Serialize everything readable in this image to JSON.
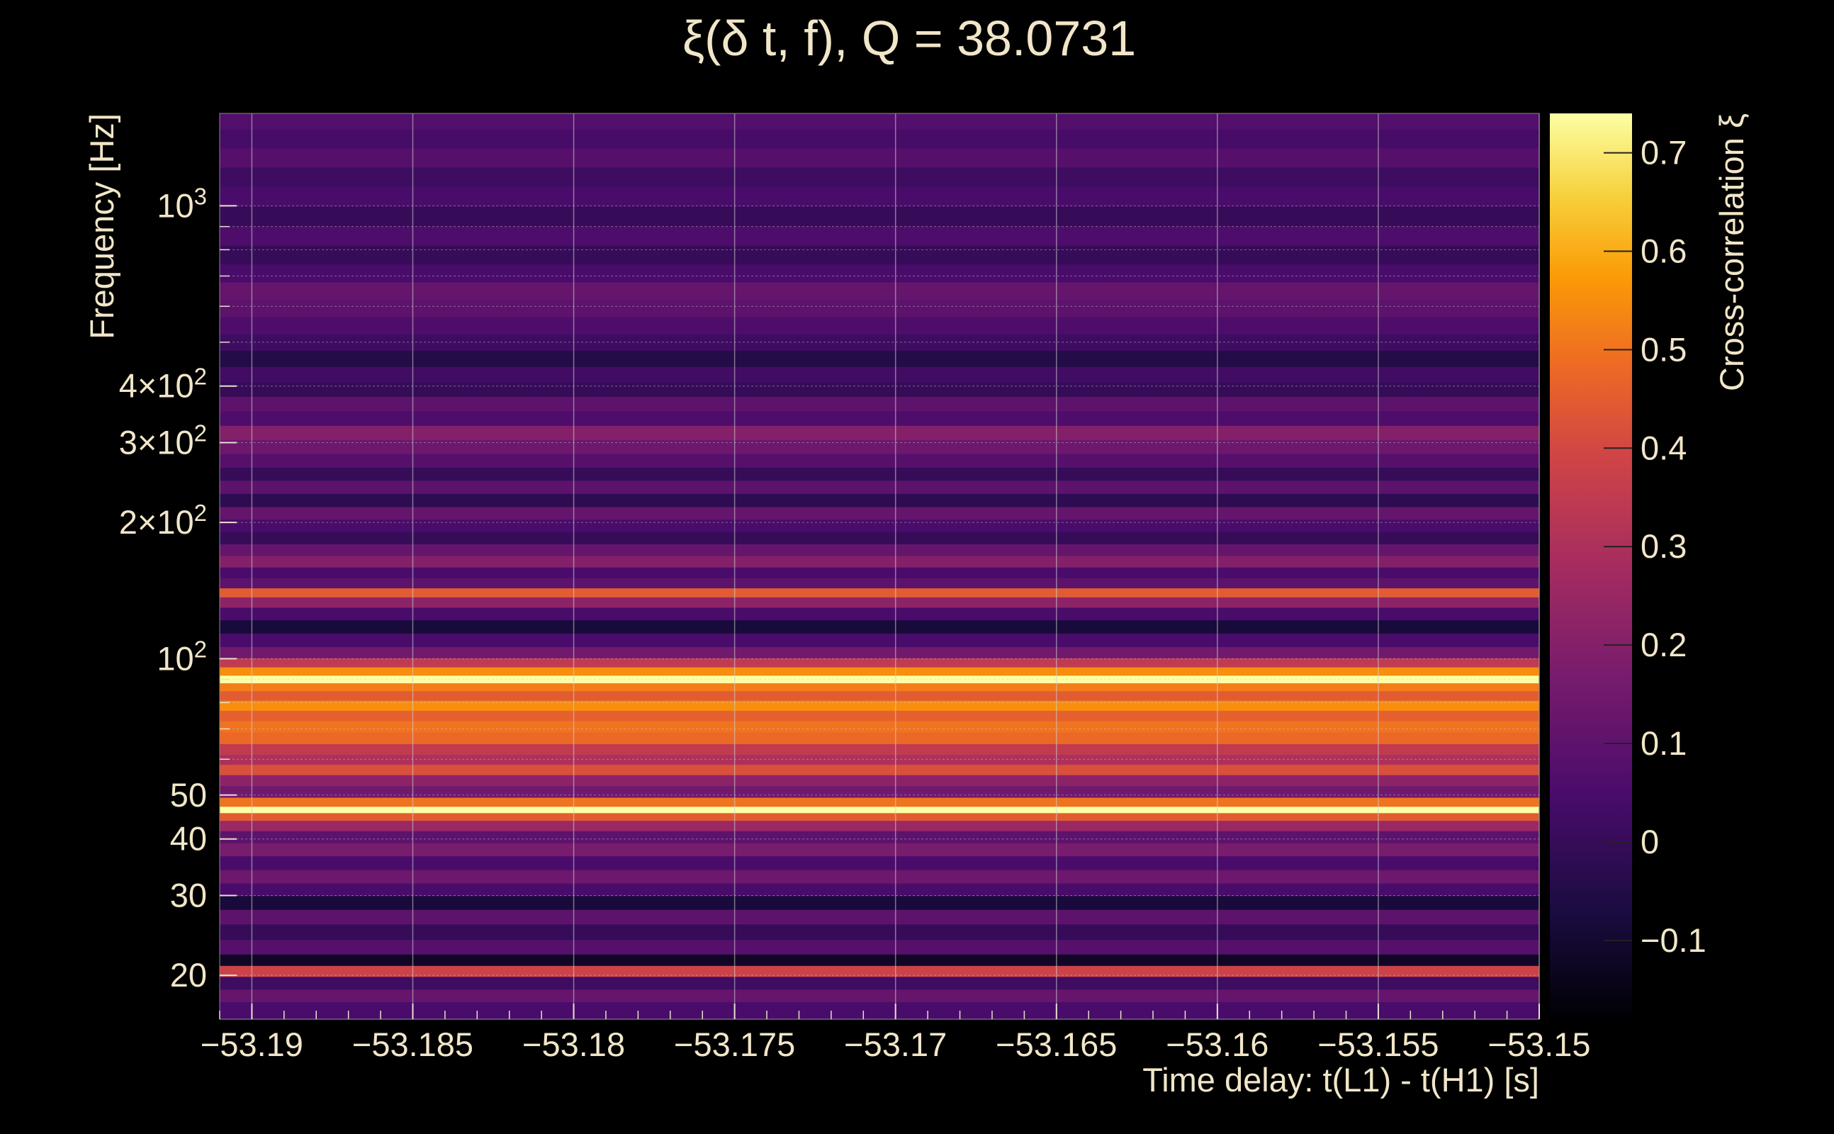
{
  "chart_data": {
    "type": "heatmap",
    "title": "ξ(δ t, f), Q = 38.0731",
    "xlabel": "Time delay: t(L1) - t(H1) [s]",
    "ylabel": "Frequency [Hz]",
    "colorbar_label": "Cross-correlation ξ",
    "colormap": "inferno",
    "xlim": [
      -53.191,
      -53.15
    ],
    "ylim": [
      16,
      1600
    ],
    "yscale": "log",
    "clim": [
      -0.18,
      0.74
    ],
    "grid": true,
    "x_ticks": [
      {
        "value": -53.19,
        "label": "−53.19"
      },
      {
        "value": -53.185,
        "label": "−53.185"
      },
      {
        "value": -53.18,
        "label": "−53.18"
      },
      {
        "value": -53.175,
        "label": "−53.175"
      },
      {
        "value": -53.17,
        "label": "−53.17"
      },
      {
        "value": -53.165,
        "label": "−53.165"
      },
      {
        "value": -53.16,
        "label": "−53.16"
      },
      {
        "value": -53.155,
        "label": "−53.155"
      },
      {
        "value": -53.15,
        "label": "−53.15"
      }
    ],
    "y_ticks": [
      {
        "value": 20,
        "base": "20",
        "exp": ""
      },
      {
        "value": 30,
        "base": "30",
        "exp": ""
      },
      {
        "value": 40,
        "base": "40",
        "exp": ""
      },
      {
        "value": 50,
        "base": "50",
        "exp": ""
      },
      {
        "value": 100,
        "base": "10",
        "exp": "2"
      },
      {
        "value": 200,
        "base": "2×10",
        "exp": "2"
      },
      {
        "value": 300,
        "base": "3×10",
        "exp": "2"
      },
      {
        "value": 400,
        "base": "4×10",
        "exp": "2"
      },
      {
        "value": 1000,
        "base": "10",
        "exp": "3"
      }
    ],
    "colorbar_ticks": [
      {
        "value": -0.1,
        "label": "−0.1"
      },
      {
        "value": 0,
        "label": "0"
      },
      {
        "value": 0.1,
        "label": "0.1"
      },
      {
        "value": 0.2,
        "label": "0.2"
      },
      {
        "value": 0.3,
        "label": "0.3"
      },
      {
        "value": 0.4,
        "label": "0.4"
      },
      {
        "value": 0.5,
        "label": "0.5"
      },
      {
        "value": 0.6,
        "label": "0.6"
      },
      {
        "value": 0.7,
        "label": "0.7"
      }
    ],
    "bands": [
      {
        "f": 17,
        "value": 0.05
      },
      {
        "f": 18,
        "value": 0.12
      },
      {
        "f": 19.3,
        "value": 0.02
      },
      {
        "f": 20.5,
        "value": 0.38
      },
      {
        "f": 21.6,
        "value": -0.12
      },
      {
        "f": 23,
        "value": 0.08
      },
      {
        "f": 25,
        "value": 0.0
      },
      {
        "f": 27,
        "value": 0.1
      },
      {
        "f": 29,
        "value": -0.08
      },
      {
        "f": 31,
        "value": 0.05
      },
      {
        "f": 33,
        "value": 0.14
      },
      {
        "f": 35.5,
        "value": 0.05
      },
      {
        "f": 38,
        "value": 0.17
      },
      {
        "f": 40.5,
        "value": 0.1
      },
      {
        "f": 43,
        "value": 0.25
      },
      {
        "f": 45,
        "value": 0.45
      },
      {
        "f": 46.5,
        "value": 0.74
      },
      {
        "f": 48,
        "value": 0.5
      },
      {
        "f": 51,
        "value": 0.15
      },
      {
        "f": 54,
        "value": 0.22
      },
      {
        "f": 57,
        "value": 0.42
      },
      {
        "f": 60,
        "value": 0.3
      },
      {
        "f": 63,
        "value": 0.35
      },
      {
        "f": 67,
        "value": 0.48
      },
      {
        "f": 71,
        "value": 0.5
      },
      {
        "f": 75,
        "value": 0.46
      },
      {
        "f": 79,
        "value": 0.55
      },
      {
        "f": 83,
        "value": 0.45
      },
      {
        "f": 87,
        "value": 0.52
      },
      {
        "f": 90,
        "value": 0.74
      },
      {
        "f": 94,
        "value": 0.55
      },
      {
        "f": 98,
        "value": 0.35
      },
      {
        "f": 103,
        "value": 0.15
      },
      {
        "f": 110,
        "value": 0.05
      },
      {
        "f": 118,
        "value": -0.08
      },
      {
        "f": 126,
        "value": 0.05
      },
      {
        "f": 134,
        "value": 0.22
      },
      {
        "f": 140,
        "value": 0.45
      },
      {
        "f": 147,
        "value": 0.1
      },
      {
        "f": 155,
        "value": 0.05
      },
      {
        "f": 164,
        "value": 0.2
      },
      {
        "f": 174,
        "value": 0.12
      },
      {
        "f": 185,
        "value": 0.0
      },
      {
        "f": 197,
        "value": 0.05
      },
      {
        "f": 210,
        "value": 0.12
      },
      {
        "f": 224,
        "value": -0.02
      },
      {
        "f": 240,
        "value": 0.1
      },
      {
        "f": 256,
        "value": 0.0
      },
      {
        "f": 274,
        "value": 0.08
      },
      {
        "f": 294,
        "value": 0.14
      },
      {
        "f": 316,
        "value": 0.2
      },
      {
        "f": 340,
        "value": 0.06
      },
      {
        "f": 366,
        "value": 0.1
      },
      {
        "f": 394,
        "value": 0.0
      },
      {
        "f": 425,
        "value": 0.03
      },
      {
        "f": 460,
        "value": -0.05
      },
      {
        "f": 500,
        "value": 0.02
      },
      {
        "f": 545,
        "value": 0.06
      },
      {
        "f": 595,
        "value": 0.1
      },
      {
        "f": 650,
        "value": 0.12
      },
      {
        "f": 710,
        "value": 0.05
      },
      {
        "f": 780,
        "value": 0.0
      },
      {
        "f": 860,
        "value": 0.06
      },
      {
        "f": 950,
        "value": 0.0
      },
      {
        "f": 1050,
        "value": 0.05
      },
      {
        "f": 1160,
        "value": 0.02
      },
      {
        "f": 1280,
        "value": 0.08
      },
      {
        "f": 1410,
        "value": 0.04
      },
      {
        "f": 1550,
        "value": 0.07
      }
    ]
  }
}
